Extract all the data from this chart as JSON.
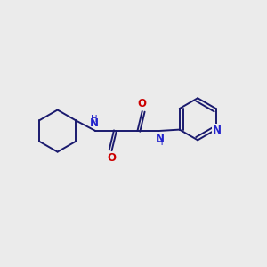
{
  "background_color": "#ebebeb",
  "bond_color": "#1a1a6e",
  "nitrogen_color": "#2222cc",
  "oxygen_color": "#cc0000",
  "line_width": 1.4,
  "figsize": [
    3.0,
    3.0
  ],
  "dpi": 100,
  "xlim": [
    0,
    10
  ],
  "ylim": [
    0,
    10
  ]
}
